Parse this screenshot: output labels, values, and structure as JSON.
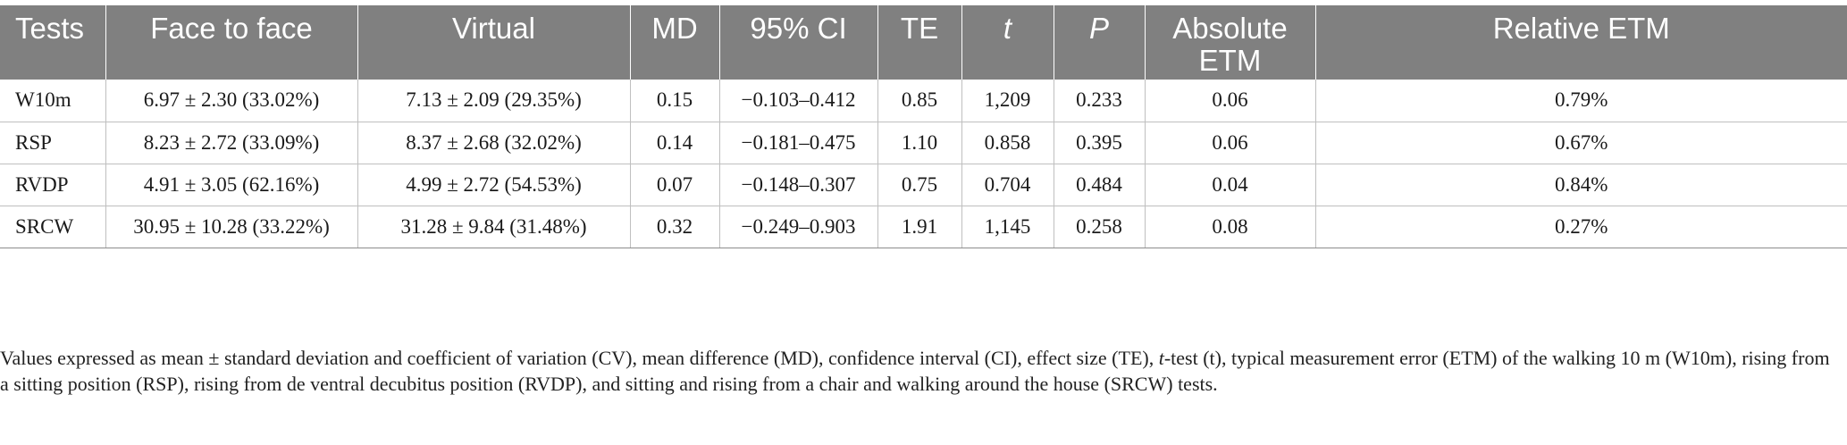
{
  "table": {
    "headers": [
      "Tests",
      "Face to face",
      "Virtual",
      "MD",
      "95% CI",
      "TE",
      "t",
      "P",
      "Absolute ETM",
      "Relative ETM"
    ],
    "rows": [
      [
        "W10m",
        "6.97 ± 2.30 (33.02%)",
        "7.13 ± 2.09 (29.35%)",
        "0.15",
        "−0.103–0.412",
        "0.85",
        "1,209",
        "0.233",
        "0.06",
        "0.79%"
      ],
      [
        "RSP",
        "8.23 ± 2.72 (33.09%)",
        "8.37 ± 2.68 (32.02%)",
        "0.14",
        "−0.181–0.475",
        "1.10",
        "0.858",
        "0.395",
        "0.06",
        "0.67%"
      ],
      [
        "RVDP",
        "4.91 ± 3.05 (62.16%)",
        "4.99 ± 2.72 (54.53%)",
        "0.07",
        "−0.148–0.307",
        "0.75",
        "0.704",
        "0.484",
        "0.04",
        "0.84%"
      ],
      [
        "SRCW",
        "30.95 ± 10.28 (33.22%)",
        "31.28 ± 9.84 (31.48%)",
        "0.32",
        "−0.249–0.903",
        "1.91",
        "1,145",
        "0.258",
        "0.08",
        "0.27%"
      ]
    ]
  },
  "footnote": {
    "part1": "Values expressed as mean ± standard deviation and coefficient of variation (CV), mean difference (MD), confidence interval (CI), effect size (TE), ",
    "italic": "t",
    "part2": "-test (t), typical measurement error (ETM) of the walking 10 m (W10m), rising from a sitting position (RSP), rising from de ventral decubitus position (RVDP), and sitting and rising from a chair and walking around the house (SRCW) tests."
  }
}
